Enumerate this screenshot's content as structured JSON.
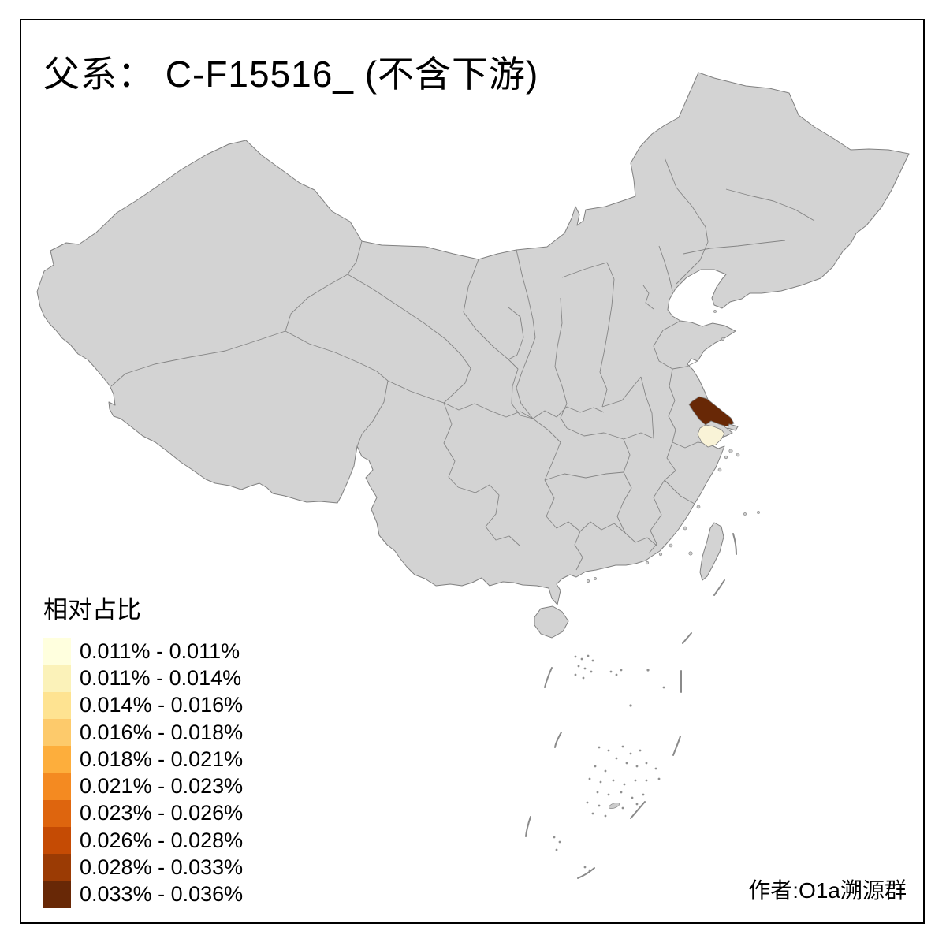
{
  "title": "父系： C-F15516_ (不含下游)",
  "legend": {
    "title": "相对占比",
    "classes": [
      {
        "label": "0.011% - 0.011%",
        "color": "#FFFFDE"
      },
      {
        "label": "0.011% - 0.014%",
        "color": "#FBF2B9"
      },
      {
        "label": "0.014% - 0.016%",
        "color": "#FEE391"
      },
      {
        "label": "0.016% - 0.018%",
        "color": "#FDCA6B"
      },
      {
        "label": "0.018% - 0.021%",
        "color": "#FDAE3C"
      },
      {
        "label": "0.021% - 0.023%",
        "color": "#F48A21"
      },
      {
        "label": "0.023% - 0.026%",
        "color": "#DE650E"
      },
      {
        "label": "0.026% - 0.028%",
        "color": "#C54B04"
      },
      {
        "label": "0.028% - 0.033%",
        "color": "#9B3B04"
      },
      {
        "label": "0.033% - 0.036%",
        "color": "#682806"
      }
    ]
  },
  "attribution": "作者:O1a溯源群",
  "map": {
    "background": "#FFFFFF",
    "base_fill": "#D3D3D3",
    "border_color": "#808080",
    "frame_color": "#000000",
    "regions": [
      {
        "id": "highest-value-region",
        "color": "#682806"
      },
      {
        "id": "lowest-value-region",
        "color": "#F9F3D7"
      }
    ]
  }
}
